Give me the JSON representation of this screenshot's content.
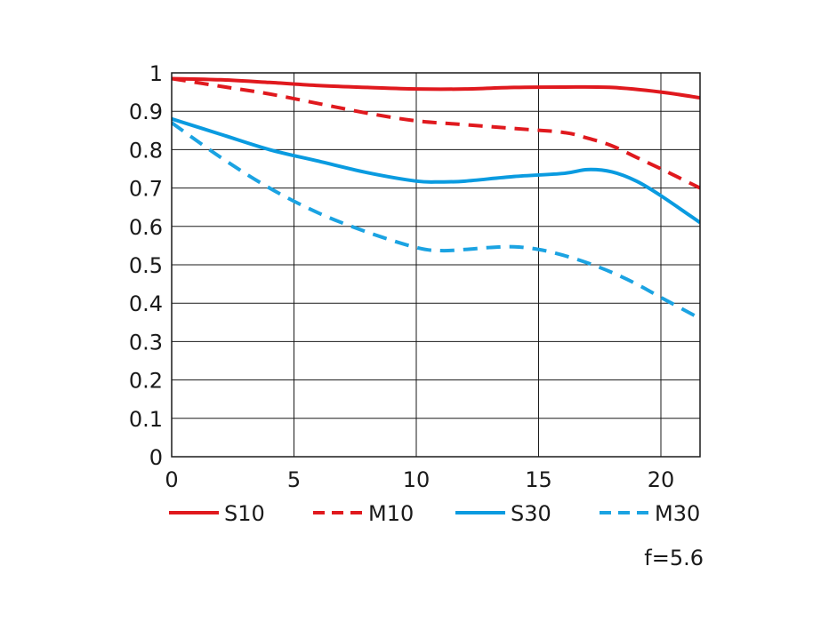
{
  "chart_data": {
    "type": "line",
    "title": "",
    "xlabel": "",
    "ylabel": "",
    "xlim": [
      0,
      21.6
    ],
    "ylim": [
      0,
      1
    ],
    "grid": true,
    "x_ticks": [
      0,
      5,
      10,
      15,
      20
    ],
    "x_tick_labels": [
      "0",
      "5",
      "10",
      "15",
      "20"
    ],
    "y_ticks": [
      0,
      0.1,
      0.2,
      0.3,
      0.4,
      0.5,
      0.6,
      0.7,
      0.8,
      0.9,
      1
    ],
    "y_tick_labels": [
      "0",
      "0.1",
      "0.2",
      "0.3",
      "0.4",
      "0.5",
      "0.6",
      "0.7",
      "0.8",
      "0.9",
      "1"
    ],
    "legend_position": "bottom",
    "annotation": "f=5.6",
    "series": [
      {
        "name": "S10",
        "color": "#e0191e",
        "dashed": false,
        "x": [
          0,
          2,
          4,
          6,
          8,
          10,
          12,
          14,
          16,
          18,
          20,
          21.6
        ],
        "y": [
          0.985,
          0.982,
          0.975,
          0.967,
          0.962,
          0.958,
          0.958,
          0.962,
          0.963,
          0.962,
          0.95,
          0.935
        ]
      },
      {
        "name": "M10",
        "color": "#e0191e",
        "dashed": true,
        "x": [
          0,
          2,
          4,
          6,
          8,
          10,
          12,
          14,
          16,
          17,
          18,
          19,
          20,
          21.6
        ],
        "y": [
          0.985,
          0.965,
          0.945,
          0.92,
          0.895,
          0.875,
          0.865,
          0.855,
          0.845,
          0.83,
          0.81,
          0.78,
          0.75,
          0.7
        ]
      },
      {
        "name": "S30",
        "color": "#0a9be0",
        "dashed": false,
        "x": [
          0,
          2,
          4,
          6,
          8,
          10,
          11,
          12,
          14,
          16,
          17,
          18,
          19,
          20,
          21.6
        ],
        "y": [
          0.88,
          0.84,
          0.8,
          0.77,
          0.74,
          0.718,
          0.716,
          0.718,
          0.73,
          0.738,
          0.748,
          0.742,
          0.718,
          0.68,
          0.61
        ]
      },
      {
        "name": "M30",
        "color": "#1ba3e2",
        "dashed": true,
        "x": [
          0,
          2,
          4,
          6,
          8,
          10,
          11,
          12,
          13,
          14,
          15,
          16,
          17,
          18,
          19,
          20,
          21.6
        ],
        "y": [
          0.87,
          0.78,
          0.7,
          0.635,
          0.585,
          0.545,
          0.537,
          0.54,
          0.545,
          0.547,
          0.54,
          0.525,
          0.505,
          0.48,
          0.45,
          0.415,
          0.36
        ]
      }
    ]
  }
}
